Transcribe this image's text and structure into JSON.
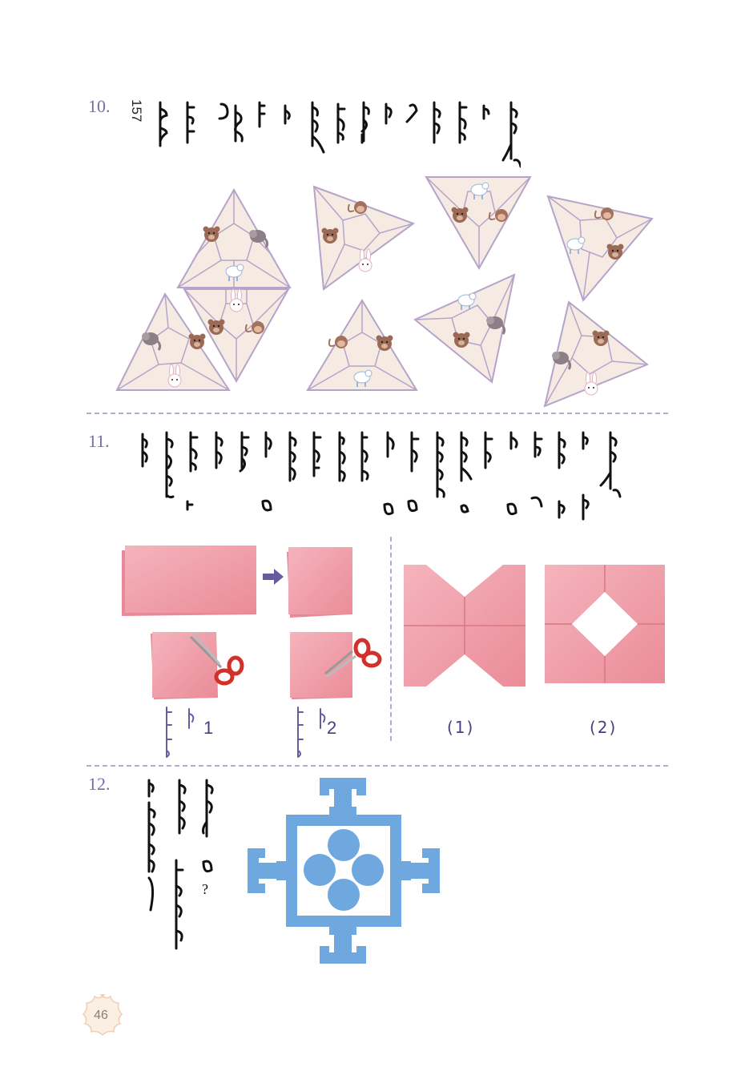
{
  "questions": {
    "q10": {
      "number": "10.",
      "aside_number": "157"
    },
    "q11": {
      "number": "11."
    },
    "q12": {
      "number": "12.",
      "question_mark": "?"
    }
  },
  "fold_steps": {
    "step1": "1",
    "step2": "2",
    "result1": "(1)",
    "result2": "(2)"
  },
  "page_number": "46",
  "colors": {
    "accent": "#7a6aa8",
    "divider": "#b9a9cf",
    "triangle_fill": "#f6ebe3",
    "triangle_stroke": "#b6a3c9",
    "paper_pink": "#f2a3ad",
    "blue_cutout": "#6ea8df"
  },
  "icons": [
    "bear-icon",
    "rabbit-icon",
    "elephant-icon",
    "monkey-icon",
    "scissors-icon",
    "arrow-right-icon"
  ]
}
